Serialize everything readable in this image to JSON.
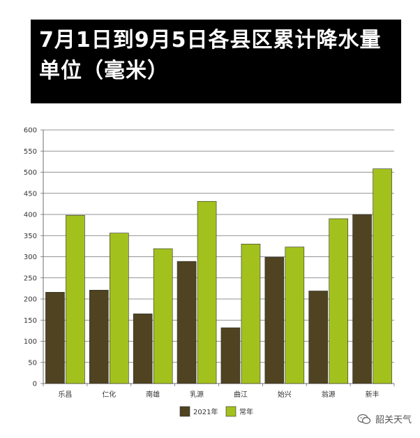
{
  "title": {
    "line1": "7月1日到9月5日各县区累计降水量",
    "line2": "单位（毫米）"
  },
  "chart_data": {
    "type": "bar",
    "categories": [
      "乐昌",
      "仁化",
      "南雄",
      "乳源",
      "曲江",
      "始兴",
      "翁源",
      "新丰"
    ],
    "series": [
      {
        "name": "2021年",
        "color": "#4f4321",
        "values": [
          216,
          221,
          165,
          289,
          132,
          299,
          219,
          400
        ]
      },
      {
        "name": "常年",
        "color": "#a3c11d",
        "values": [
          398,
          356,
          319,
          431,
          330,
          323,
          390,
          508
        ]
      }
    ],
    "ylim": [
      0,
      600
    ],
    "yticks": [
      0,
      50,
      100,
      150,
      200,
      250,
      300,
      350,
      400,
      450,
      500,
      550,
      600
    ],
    "grid": true,
    "legend": "bottom"
  },
  "watermark": {
    "text": "韶关天气",
    "icon": "wechat-icon"
  }
}
